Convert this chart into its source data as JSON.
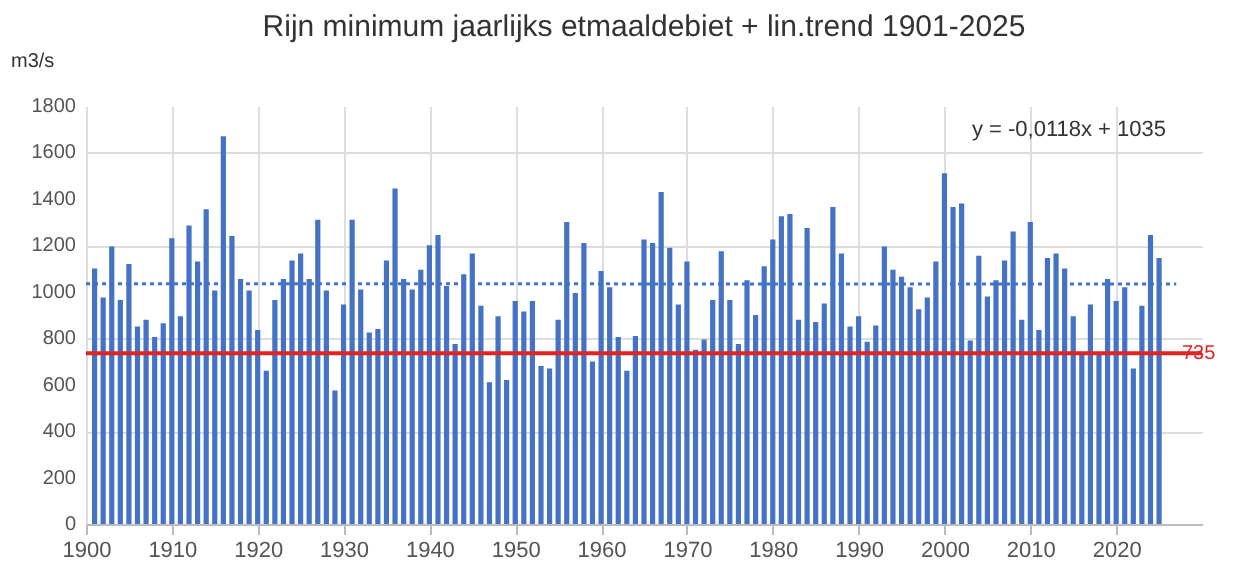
{
  "chart_data": {
    "type": "bar",
    "title": "Rijn minimum jaarlijks etmaaldebiet + lin.trend 1901-2025",
    "ylabel": "m3/s",
    "x": [
      1901,
      1902,
      1903,
      1904,
      1905,
      1906,
      1907,
      1908,
      1909,
      1910,
      1911,
      1912,
      1913,
      1914,
      1915,
      1916,
      1917,
      1918,
      1919,
      1920,
      1921,
      1922,
      1923,
      1924,
      1925,
      1926,
      1927,
      1928,
      1929,
      1930,
      1931,
      1932,
      1933,
      1934,
      1935,
      1936,
      1937,
      1938,
      1939,
      1940,
      1941,
      1942,
      1943,
      1944,
      1945,
      1946,
      1947,
      1948,
      1949,
      1950,
      1951,
      1952,
      1953,
      1954,
      1955,
      1956,
      1957,
      1958,
      1959,
      1960,
      1961,
      1962,
      1963,
      1964,
      1965,
      1966,
      1967,
      1968,
      1969,
      1970,
      1971,
      1972,
      1973,
      1974,
      1975,
      1976,
      1977,
      1978,
      1979,
      1980,
      1981,
      1982,
      1983,
      1984,
      1985,
      1986,
      1987,
      1988,
      1989,
      1990,
      1991,
      1992,
      1993,
      1994,
      1995,
      1996,
      1997,
      1998,
      1999,
      2000,
      2001,
      2002,
      2003,
      2004,
      2005,
      2006,
      2007,
      2008,
      2009,
      2010,
      2011,
      2012,
      2013,
      2014,
      2015,
      2016,
      2017,
      2018,
      2019,
      2020,
      2021,
      2022,
      2023,
      2024,
      2025
    ],
    "series": [
      {
        "color": "#4472c4",
        "values": [
          1100,
          975,
          1195,
          965,
          1120,
          850,
          880,
          805,
          865,
          1230,
          895,
          1285,
          1130,
          1355,
          1005,
          1670,
          1240,
          1055,
          1005,
          835,
          660,
          965,
          1055,
          1135,
          1165,
          1055,
          1310,
          1005,
          575,
          945,
          1310,
          1010,
          825,
          840,
          1135,
          1445,
          1055,
          1010,
          1095,
          1200,
          1245,
          1025,
          775,
          1075,
          1165,
          940,
          610,
          895,
          620,
          960,
          915,
          960,
          680,
          670,
          880,
          1300,
          995,
          1210,
          700,
          1090,
          1020,
          805,
          660,
          810,
          1225,
          1210,
          1430,
          1190,
          945,
          1130,
          750,
          795,
          965,
          1175,
          965,
          775,
          1050,
          900,
          1110,
          1225,
          1325,
          1335,
          880,
          1275,
          870,
          950,
          1365,
          1165,
          850,
          895,
          785,
          855,
          1195,
          1095,
          1065,
          1020,
          925,
          975,
          1130,
          1510,
          1365,
          1380,
          790,
          1155,
          980,
          1050,
          1135,
          1260,
          880,
          1300,
          835,
          1145,
          1165,
          1100,
          895,
          740,
          945,
          730,
          1055,
          960,
          1020,
          670,
          940,
          1245,
          1145
        ]
      },
      {
        "type": "line",
        "color": "#4472c4",
        "line_style": "dotted",
        "x": [
          1900,
          2027
        ],
        "values": [
          1035,
          1033
        ]
      }
    ],
    "xlim": [
      1900,
      2030
    ],
    "xticks": [
      1900,
      1910,
      1920,
      1930,
      1940,
      1950,
      1960,
      1970,
      1980,
      1990,
      2000,
      2010,
      2020
    ],
    "ylim": [
      0,
      1800
    ],
    "yticks": [
      0,
      200,
      400,
      600,
      800,
      1000,
      1200,
      1400,
      1600,
      1800
    ],
    "grid": true,
    "ref_lines": [
      {
        "axis": "y",
        "value": 735,
        "label": "735",
        "color": "#e02424",
        "line_style": "solid"
      }
    ],
    "annotations": [
      "y = -0,0118x + 1035"
    ]
  }
}
